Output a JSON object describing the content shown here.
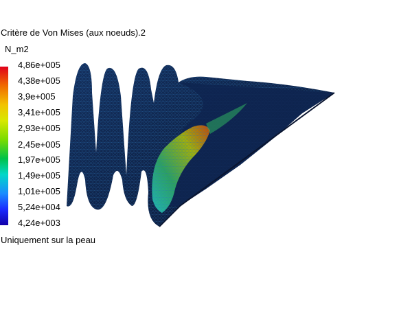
{
  "result_title": "Critère de Von Mises (aux noeuds).2",
  "unit": "N_m2",
  "legend": {
    "values": [
      "4,86e+005",
      "4,38e+005",
      "3,9e+005",
      "3,41e+005",
      "2,93e+005",
      "2,45e+005",
      "1,97e+005",
      "1,49e+005",
      "1,01e+005",
      "5,24e+004",
      "4,24e+003"
    ],
    "colors": [
      "#e0001a",
      "#f06a00",
      "#f2c200",
      "#d8e800",
      "#7bdc00",
      "#00c24a",
      "#00d7c8",
      "#1a8cff",
      "#1a2bff",
      "#1200a8"
    ]
  },
  "footer_text": "Uniquement sur la peau",
  "model": {
    "base_color": "#0b1a3e",
    "mesh_color": "#1f6aa8",
    "hotspot_colors": [
      "#d84a00",
      "#b3c000",
      "#2fb060",
      "#22c8c0"
    ]
  }
}
